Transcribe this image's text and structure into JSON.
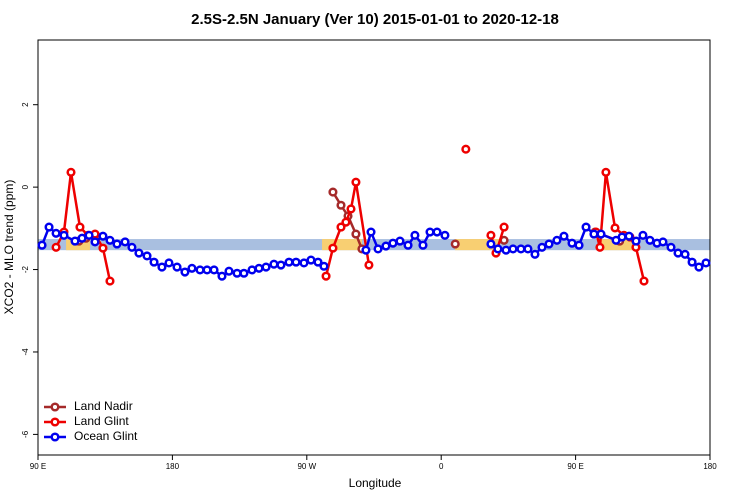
{
  "chart_data": {
    "type": "line",
    "title": "2.5S-2.5N January (Ver 10)   2015-01-01 to 2020-12-18",
    "x_label": "Longitude",
    "y_label": "XCO2 - MLO trend (ppm)",
    "xlim": [
      90,
      540
    ],
    "ylim": [
      -6.5,
      3.57
    ],
    "xticks": [
      {
        "value": 90,
        "label": "90 E"
      },
      180,
      {
        "value": 270,
        "label": "90 W"
      },
      {
        "value": 360,
        "label": "0"
      },
      {
        "value": 450,
        "label": "90 E"
      },
      {
        "value": 540,
        "label": "180"
      }
    ],
    "yticks": [
      -6,
      -4,
      -2,
      0,
      2
    ],
    "legend": "bottomleft",
    "bands": [
      {
        "color": "#a9bfe0",
        "x": [
          90,
          540
        ],
        "y": [
          -1.26,
          -1.53
        ]
      },
      {
        "color": "#f8cf72",
        "x": [
          108.8,
          124.8
        ],
        "y": [
          -1.26,
          -1.53
        ]
      },
      {
        "color": "#f8cf72",
        "x": [
          280.2,
          306.9
        ],
        "y": [
          -1.26,
          -1.53
        ]
      },
      {
        "color": "#f8cf72",
        "x": [
          369.2,
          399.4
        ],
        "y": [
          -1.26,
          -1.53
        ]
      },
      {
        "color": "#f8cf72",
        "x": [
          465.0,
          487.8
        ],
        "y": [
          -1.26,
          -1.53
        ]
      }
    ],
    "series": [
      {
        "name": "Land Nadir",
        "color": "#a52a2a",
        "x": [
          117.4,
          122.1,
          200,
          287.5,
          292.9,
          297.6,
          302.9,
          306.9,
          340,
          369.4,
          385,
          402.1,
          430,
          463.0,
          479.5
        ],
        "values": [
          -1.31,
          -1.24,
          null,
          -0.12,
          -0.44,
          -0.7,
          -1.14,
          -1.5,
          null,
          -1.38,
          null,
          -1.29,
          null,
          -1.09,
          -1.31
        ]
      },
      {
        "name": "Land Glint",
        "color": "#ee0000",
        "x": [
          102.1,
          107.4,
          112.1,
          118.1,
          123.5,
          128.2,
          133.5,
          138.2,
          200,
          282.9,
          287.5,
          292.9,
          296.2,
          299.6,
          302.9,
          311.6,
          340,
          376.5,
          385,
          393.3,
          396.7,
          402.1,
          430,
          463.7,
          466.3,
          470.3,
          476.4,
          482.4,
          486.4,
          490.4,
          495.8
        ],
        "values": [
          -1.46,
          -1.09,
          0.36,
          -0.97,
          -1.17,
          -1.14,
          -1.48,
          -2.28,
          null,
          -2.16,
          -1.48,
          -0.97,
          -0.85,
          -0.53,
          0.12,
          -1.89,
          null,
          0.92,
          null,
          -1.17,
          -1.6,
          -0.97,
          null,
          -1.09,
          -1.46,
          0.36,
          -0.99,
          -1.17,
          -1.21,
          -1.46,
          -2.28
        ]
      },
      {
        "name": "Ocean Glint",
        "color": "#0000ee",
        "x": [
          92.7,
          97.4,
          102.1,
          107.4,
          114.8,
          119.5,
          124.2,
          128.2,
          133.5,
          138.2,
          142.9,
          148.3,
          152.9,
          157.6,
          163.0,
          167.7,
          173.0,
          177.7,
          183.1,
          188.4,
          193.1,
          198.5,
          203.2,
          207.9,
          213.2,
          217.9,
          223.3,
          227.9,
          233.3,
          238.0,
          242.7,
          248.0,
          252.7,
          258.1,
          262.8,
          268.1,
          272.8,
          277.5,
          281.5,
          295,
          309.6,
          313.0,
          317.7,
          323.0,
          327.7,
          332.4,
          337.8,
          342.4,
          347.8,
          352.5,
          357.2,
          362.5,
          378,
          393.3,
          398.0,
          403.4,
          408.1,
          413.4,
          418.1,
          422.8,
          427.5,
          432.2,
          437.5,
          442.2,
          447.6,
          452.3,
          457.0,
          462.3,
          467.0,
          477.1,
          481.1,
          485.8,
          490.5,
          495.1,
          499.8,
          504.5,
          508.5,
          513.9,
          518.6,
          523.3,
          528.0,
          532.6,
          537.3
        ],
        "values": [
          -1.41,
          -0.97,
          -1.12,
          -1.17,
          -1.31,
          -1.24,
          -1.17,
          -1.33,
          -1.19,
          -1.29,
          -1.38,
          -1.33,
          -1.46,
          -1.6,
          -1.67,
          -1.82,
          -1.94,
          -1.84,
          -1.94,
          -2.06,
          -1.97,
          -2.01,
          -2.01,
          -2.01,
          -2.16,
          -2.04,
          -2.09,
          -2.09,
          -2.01,
          -1.97,
          -1.94,
          -1.87,
          -1.89,
          -1.82,
          -1.82,
          -1.84,
          -1.77,
          -1.82,
          -1.92,
          null,
          -1.53,
          -1.09,
          -1.5,
          -1.43,
          -1.36,
          -1.31,
          -1.41,
          -1.17,
          -1.41,
          -1.09,
          -1.09,
          -1.17,
          null,
          -1.38,
          -1.5,
          -1.53,
          -1.5,
          -1.5,
          -1.5,
          -1.63,
          -1.46,
          -1.38,
          -1.29,
          -1.19,
          -1.36,
          -1.41,
          -0.97,
          -1.14,
          -1.14,
          -1.29,
          -1.21,
          -1.19,
          -1.31,
          -1.17,
          -1.29,
          -1.36,
          -1.33,
          -1.46,
          -1.6,
          -1.63,
          -1.82,
          -1.94,
          -1.84
        ]
      }
    ]
  }
}
